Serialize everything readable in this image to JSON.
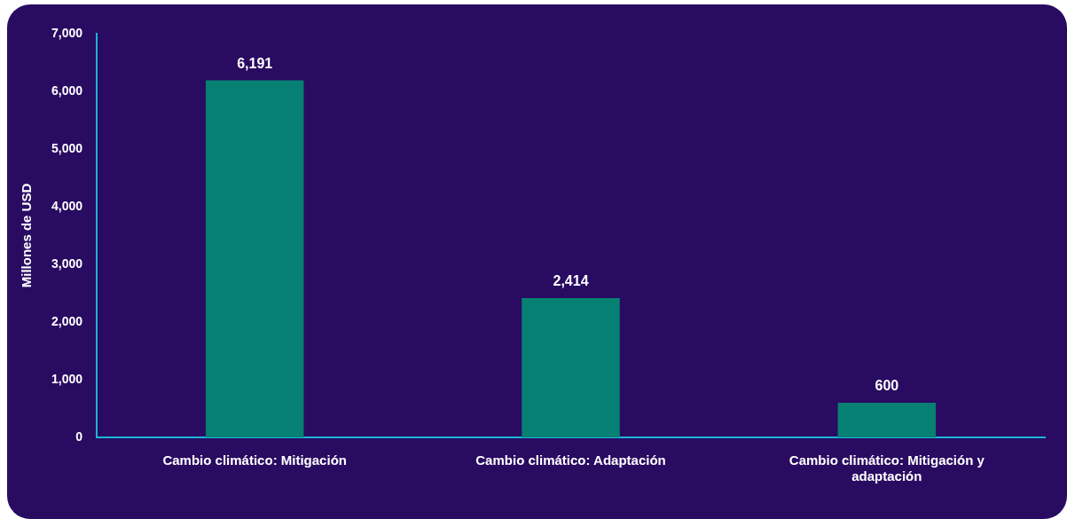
{
  "chart_data": {
    "type": "bar",
    "ylabel": "Millones de USD",
    "categories": [
      "Cambio climático: Mitigación",
      "Cambio climático: Adaptación",
      "Cambio climático: Mitigación y adaptación"
    ],
    "values": [
      6191,
      2414,
      600
    ],
    "color": "#068072",
    "value_labels": [
      "6,191",
      "2,414",
      "600"
    ],
    "ylim": [
      0,
      7000
    ],
    "yticks": [
      0,
      {
        "value": 1000,
        "label": "1,000"
      },
      {
        "value": 2000,
        "label": "2,000"
      },
      {
        "value": 3000,
        "label": "3,000"
      },
      {
        "value": 4000,
        "label": "4,000"
      },
      {
        "value": 5000,
        "label": "5,000"
      },
      {
        "value": 6000,
        "label": "6,000"
      },
      {
        "value": 7000,
        "label": "7,000"
      }
    ],
    "grid": false,
    "legend": false
  }
}
